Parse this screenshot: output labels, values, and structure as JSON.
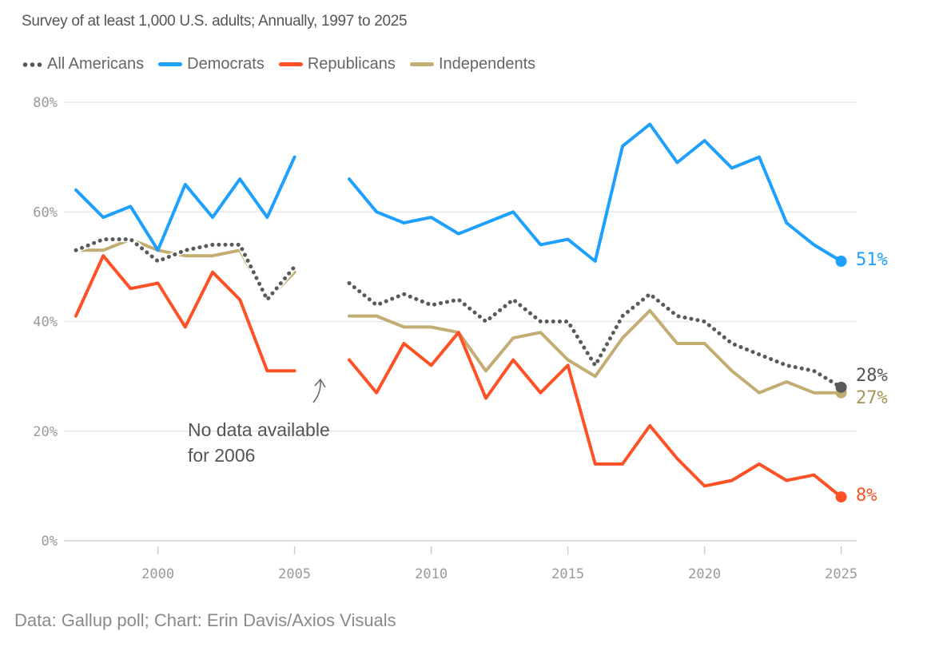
{
  "chart_data": {
    "type": "line",
    "subtitle": "Survey of at least 1,000 U.S. adults; Annually, 1997 to 2025",
    "x": [
      1997,
      1998,
      1999,
      2000,
      2001,
      2002,
      2003,
      2004,
      2005,
      2006,
      2007,
      2008,
      2009,
      2010,
      2011,
      2012,
      2013,
      2014,
      2015,
      2016,
      2017,
      2018,
      2019,
      2020,
      2021,
      2022,
      2023,
      2024,
      2025
    ],
    "series": [
      {
        "name": "All Americans",
        "color": "#5a5a5a",
        "style": "dotted",
        "end_label": "28%",
        "values": [
          53,
          55,
          55,
          51,
          53,
          54,
          54,
          44,
          50,
          null,
          47,
          43,
          45,
          43,
          44,
          40,
          44,
          40,
          40,
          32,
          41,
          45,
          41,
          40,
          36,
          34,
          32,
          31,
          28
        ]
      },
      {
        "name": "Democrats",
        "color": "#1ea0ff",
        "style": "solid",
        "end_label": "51%",
        "values": [
          64,
          59,
          61,
          53,
          65,
          59,
          66,
          59,
          70,
          null,
          66,
          60,
          58,
          59,
          56,
          58,
          60,
          54,
          55,
          51,
          72,
          76,
          69,
          73,
          68,
          70,
          58,
          54,
          51
        ]
      },
      {
        "name": "Republicans",
        "color": "#ff5126",
        "style": "solid",
        "end_label": "8%",
        "values": [
          41,
          52,
          46,
          47,
          39,
          49,
          44,
          31,
          31,
          null,
          33,
          27,
          36,
          32,
          38,
          26,
          33,
          27,
          32,
          14,
          14,
          21,
          15,
          10,
          11,
          14,
          11,
          12,
          8
        ]
      },
      {
        "name": "Independents",
        "color": "#c2ad72",
        "style": "solid",
        "end_label": "27%",
        "values": [
          53,
          53,
          55,
          53,
          52,
          52,
          53,
          44,
          49,
          null,
          41,
          41,
          39,
          39,
          38,
          31,
          37,
          38,
          33,
          30,
          37,
          42,
          36,
          36,
          31,
          27,
          29,
          27,
          27
        ]
      }
    ],
    "ylim": [
      0,
      80
    ],
    "yticks": [
      "0%",
      "20%",
      "40%",
      "60%",
      "80%"
    ],
    "ytick_values": [
      0,
      20,
      40,
      60,
      80
    ],
    "xticks": [
      "2000",
      "2005",
      "2010",
      "2015",
      "2020",
      "2025"
    ],
    "xtick_values": [
      2000,
      2005,
      2010,
      2015,
      2020,
      2025
    ],
    "annotation": {
      "line1": "No data available",
      "line2": "for 2006",
      "year": 2006
    },
    "legend_position": "top-left",
    "grid": true
  },
  "footer": "Data: Gallup poll; Chart: Erin Davis/Axios Visuals"
}
